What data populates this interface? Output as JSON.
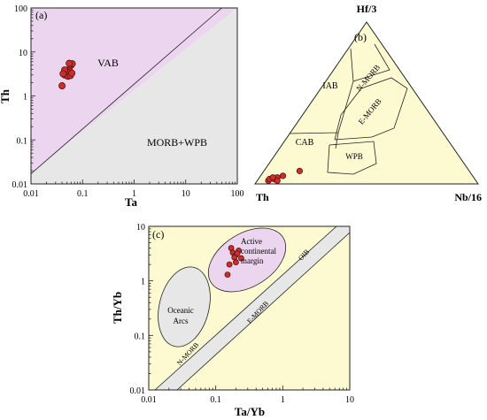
{
  "colors": {
    "cream": "#fdfad2",
    "pink": "#ecd6ef",
    "gray": "#e7e7e7",
    "point": "#c9302c"
  },
  "chart_data": [
    {
      "panel_label": "(a)",
      "type": "scatter",
      "xlabel": "Ta",
      "ylabel": "Th",
      "xscale": "log",
      "yscale": "log",
      "xlim": [
        0.01,
        100
      ],
      "ylim": [
        0.01,
        100
      ],
      "xticks": [
        "0.01",
        "0.1",
        "1",
        "10",
        "100"
      ],
      "yticks": [
        "0.01",
        "0.1",
        "1",
        "10",
        "100"
      ],
      "field_labels": [
        "VAB",
        "MORB+WPB"
      ],
      "boundary_line": [
        [
          0.01,
          0.017
        ],
        [
          50,
          100
        ]
      ],
      "points": [
        [
          0.04,
          1.7
        ],
        [
          0.045,
          3.0
        ],
        [
          0.05,
          3.5
        ],
        [
          0.055,
          4.0
        ],
        [
          0.06,
          5.0
        ],
        [
          0.052,
          2.8
        ],
        [
          0.048,
          3.7
        ],
        [
          0.058,
          2.9
        ],
        [
          0.062,
          3.3
        ],
        [
          0.045,
          3.9
        ],
        [
          0.063,
          5.4
        ],
        [
          0.055,
          5.5
        ],
        [
          0.042,
          3.2
        ]
      ]
    },
    {
      "panel_label": "(b)",
      "type": "ternary",
      "apices": [
        "Hf/3",
        "Th",
        "Nb/16"
      ],
      "field_labels": [
        "IAB",
        "N-MORB",
        "E-MORB",
        "CAB",
        "WPB"
      ],
      "points": [
        [
          0.02,
          0.93,
          0.05
        ],
        [
          0.03,
          0.9,
          0.07
        ],
        [
          0.04,
          0.88,
          0.08
        ],
        [
          0.02,
          0.89,
          0.09
        ],
        [
          0.05,
          0.85,
          0.1
        ],
        [
          0.03,
          0.92,
          0.05
        ],
        [
          0.08,
          0.76,
          0.16
        ],
        [
          0.04,
          0.9,
          0.06
        ]
      ]
    },
    {
      "panel_label": "(c)",
      "type": "scatter",
      "xlabel": "Ta/Yb",
      "ylabel": "Th/Yb",
      "xscale": "log",
      "yscale": "log",
      "xlim": [
        0.01,
        10
      ],
      "ylim": [
        0.01,
        10
      ],
      "xticks": [
        "0.01",
        "0.1",
        "1",
        "10"
      ],
      "yticks": [
        "0.01",
        "0.1",
        "1",
        "10"
      ],
      "field_labels": [
        "Active",
        "continental",
        "margin",
        "Oceanic",
        "Arcs",
        "N-MORB",
        "E-MORB",
        "OIB"
      ],
      "points": [
        [
          0.17,
          4.0
        ],
        [
          0.18,
          3.3
        ],
        [
          0.2,
          3.0
        ],
        [
          0.22,
          3.6
        ],
        [
          0.19,
          2.7
        ],
        [
          0.24,
          2.6
        ],
        [
          0.2,
          2.2
        ],
        [
          0.16,
          2.0
        ],
        [
          0.15,
          1.3
        ],
        [
          0.21,
          3.2
        ]
      ]
    }
  ]
}
